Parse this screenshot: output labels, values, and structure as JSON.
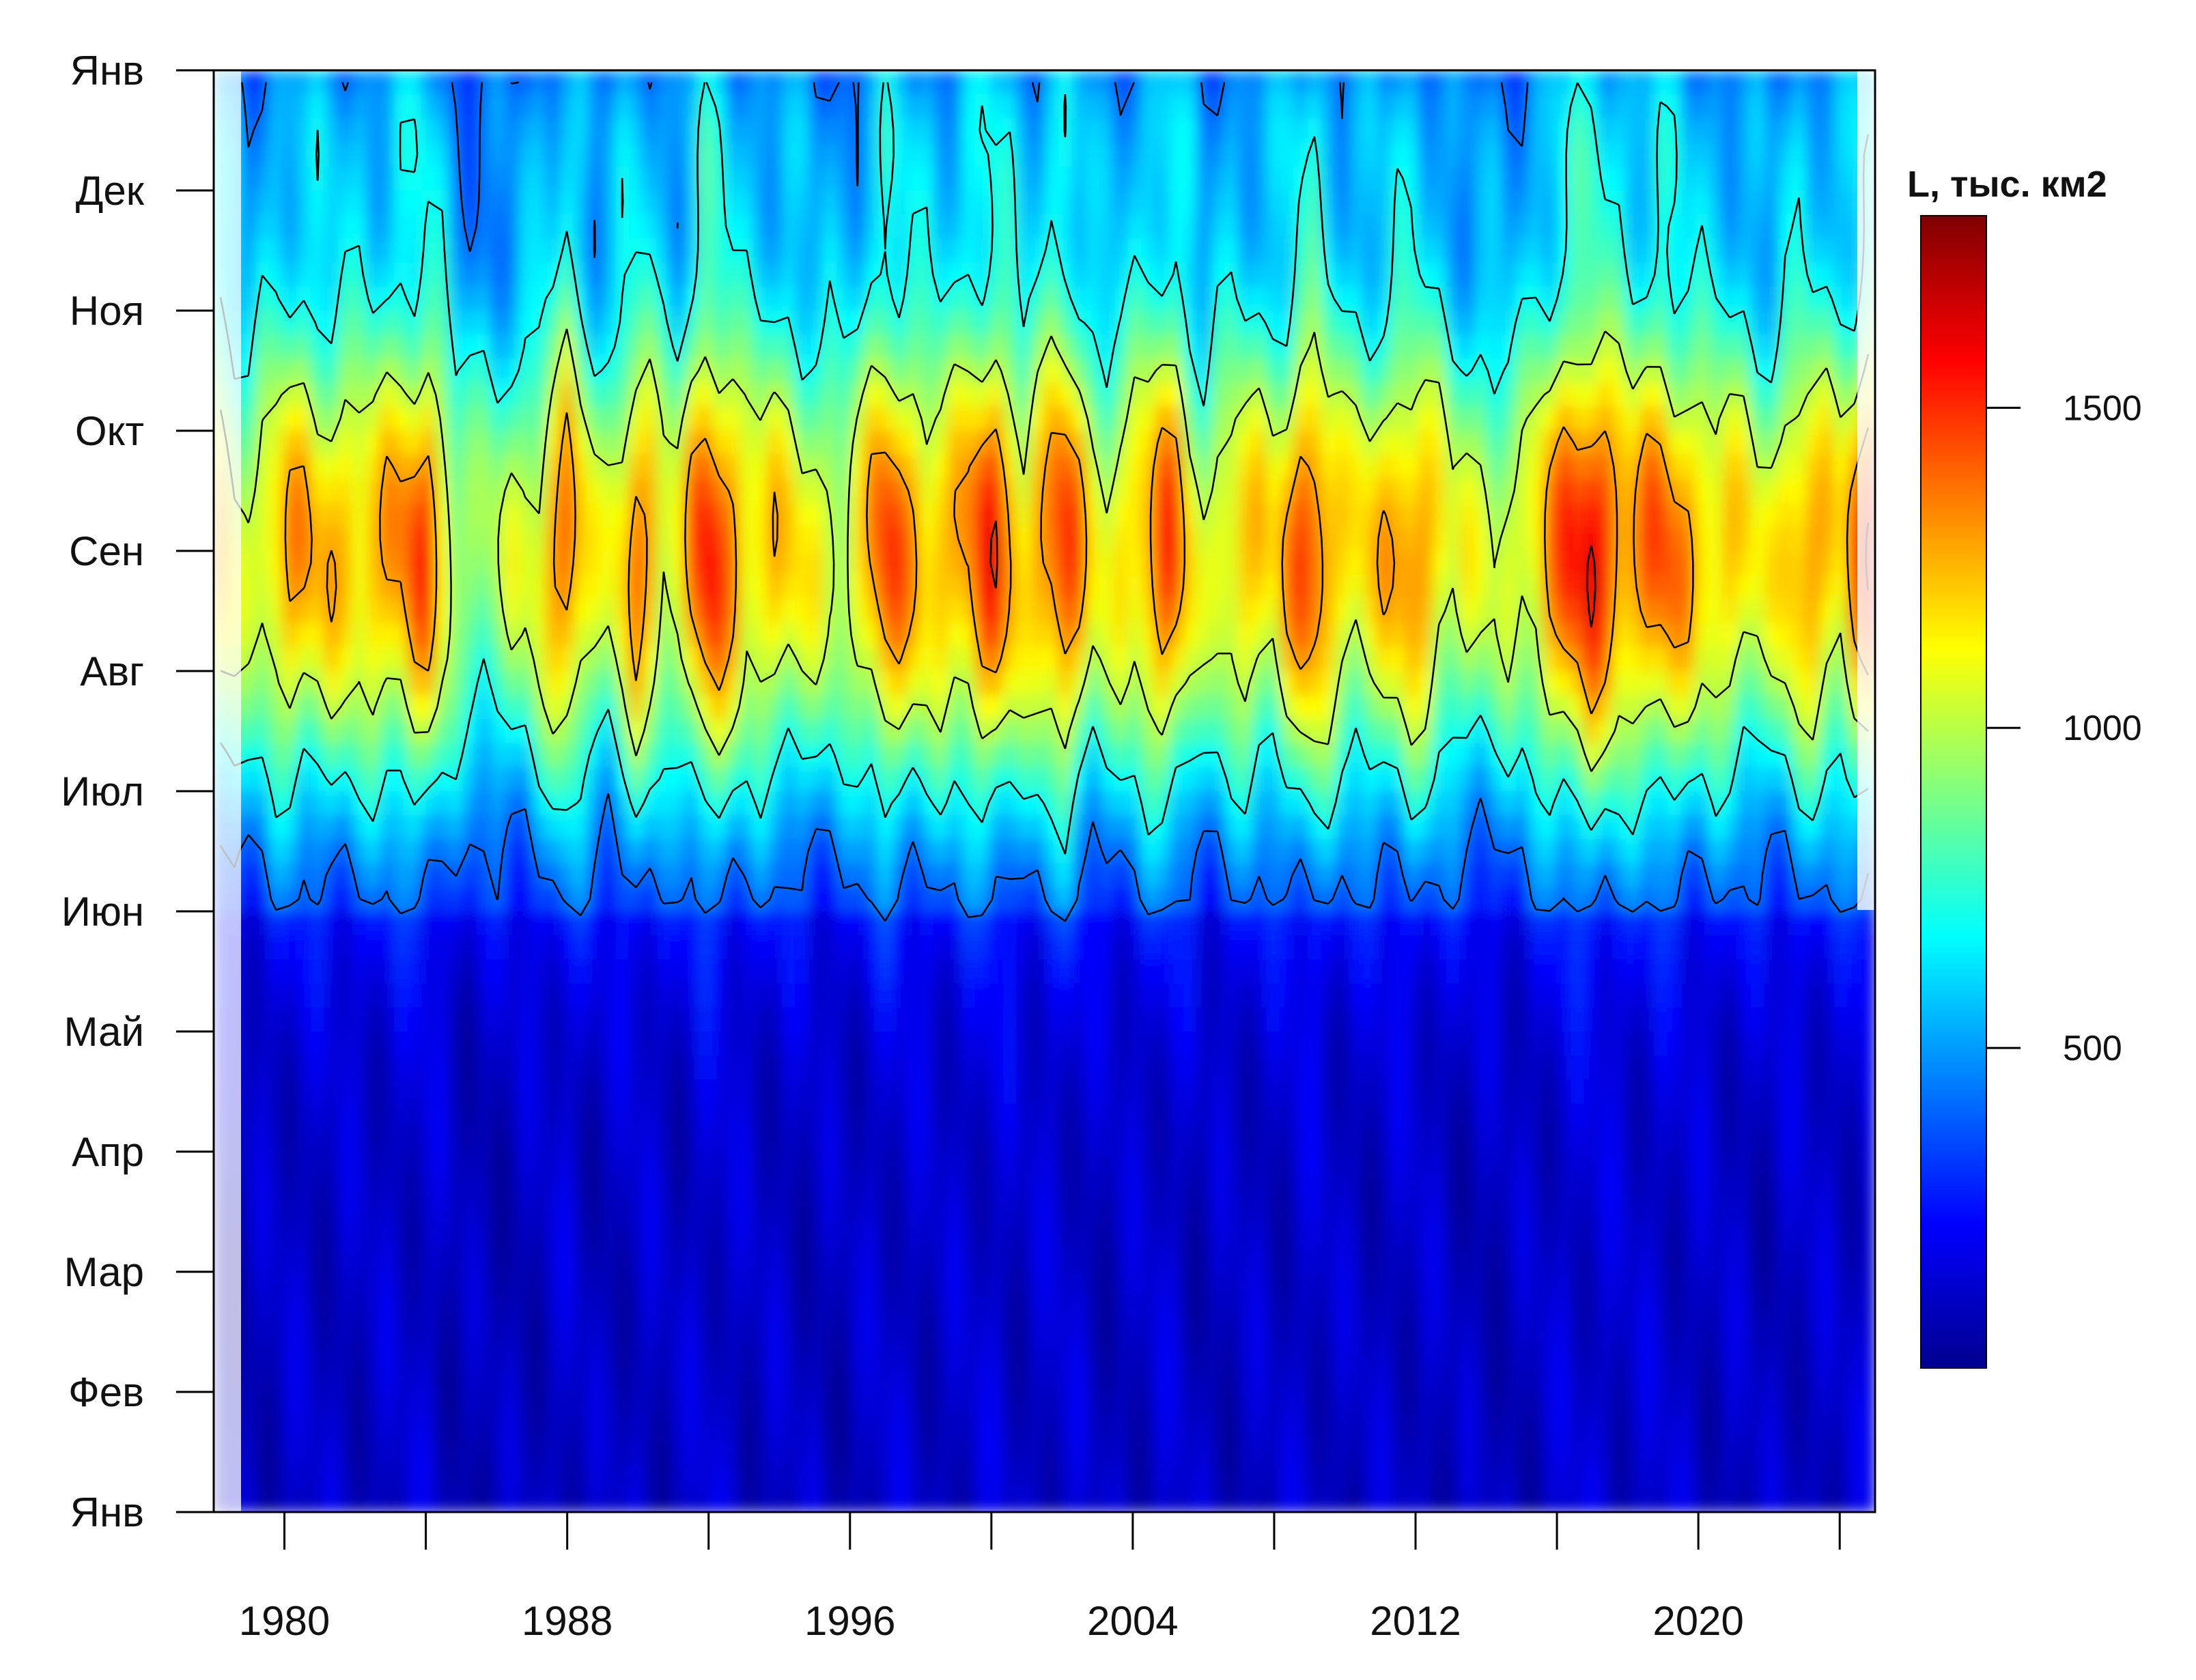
{
  "chart_data": {
    "type": "heatmap",
    "title": "",
    "xlabel": "",
    "ylabel": "",
    "x_tick_labels": [
      "1980",
      "1988",
      "1996",
      "2004",
      "2012",
      "2020"
    ],
    "x_range": [
      1978,
      2025
    ],
    "y_tick_labels": [
      "Янв",
      "Фев",
      "Мар",
      "Апр",
      "Май",
      "Июн",
      "Июл",
      "Авг",
      "Сен",
      "Окт",
      "Ноя",
      "Дек",
      "Янв"
    ],
    "y_axis_order": "Янв at bottom, Янв at top",
    "colorbar": {
      "title": "L, тыс. км2",
      "tick_labels": [
        "500",
        "1000",
        "1500"
      ],
      "ticks": [
        500,
        1000,
        1500
      ],
      "range": [
        0,
        1800
      ],
      "palette": [
        "#00008f",
        "#0000ff",
        "#0080ff",
        "#00ffff",
        "#80ff80",
        "#ffff00",
        "#ff8000",
        "#ff0000",
        "#800000"
      ]
    },
    "contours": true,
    "grid": false,
    "legend": "colorbar right"
  }
}
